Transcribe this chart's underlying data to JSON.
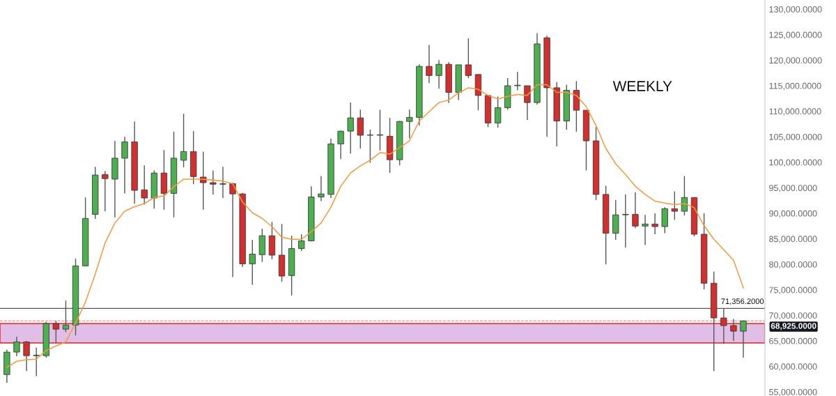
{
  "chart_data": {
    "type": "candlestick",
    "annotations": [
      "WEEKLY"
    ],
    "categories": [
      null,
      null,
      null,
      null,
      null,
      null,
      null,
      null,
      null,
      null,
      null,
      null,
      null,
      null,
      null,
      null,
      null,
      null,
      null,
      null,
      null,
      null,
      null,
      null,
      null,
      null,
      null,
      null,
      null,
      null,
      null,
      null,
      null,
      null,
      null,
      null,
      null,
      null,
      null,
      null,
      null,
      null,
      null,
      null,
      null,
      null,
      null,
      null,
      null,
      null,
      null,
      null,
      null,
      null,
      null,
      null,
      null,
      null,
      null,
      null,
      null,
      null,
      null,
      null,
      null,
      null,
      null,
      null,
      null,
      null,
      null,
      null,
      null,
      null,
      null,
      null
    ],
    "ohlc": [
      [
        58400,
        63300,
        56800,
        62800
      ],
      [
        62800,
        65800,
        62000,
        64800
      ],
      [
        64800,
        65000,
        59100,
        62100
      ],
      [
        62100,
        63700,
        58100,
        62200
      ],
      [
        62100,
        68700,
        61700,
        68400
      ],
      [
        68400,
        68900,
        64600,
        67300
      ],
      [
        67300,
        72900,
        66700,
        68100
      ],
      [
        68100,
        81100,
        66100,
        79700
      ],
      [
        79700,
        93100,
        79600,
        89000
      ],
      [
        89800,
        99100,
        88900,
        97500
      ],
      [
        97600,
        98300,
        90400,
        96800
      ],
      [
        96700,
        104200,
        89200,
        100800
      ],
      [
        100800,
        105000,
        93900,
        104000
      ],
      [
        104000,
        108000,
        91900,
        94500
      ],
      [
        94600,
        99400,
        91700,
        93000
      ],
      [
        93000,
        98400,
        90900,
        97900
      ],
      [
        97900,
        102400,
        90700,
        93900
      ],
      [
        93900,
        106000,
        89200,
        100800
      ],
      [
        100400,
        109500,
        99000,
        102100
      ],
      [
        102100,
        106100,
        95700,
        97200
      ],
      [
        97100,
        102100,
        90700,
        96000
      ],
      [
        96000,
        98400,
        93700,
        95700
      ],
      [
        95800,
        99100,
        93000,
        95700
      ],
      [
        95800,
        96000,
        77500,
        93800
      ],
      [
        93800,
        94000,
        79500,
        80100
      ],
      [
        80100,
        84800,
        76000,
        82000
      ],
      [
        81900,
        87000,
        80500,
        85600
      ],
      [
        85600,
        88300,
        81000,
        81800
      ],
      [
        81800,
        87900,
        76600,
        77700
      ],
      [
        77800,
        85600,
        73900,
        83100
      ],
      [
        83100,
        85900,
        82600,
        84600
      ],
      [
        84600,
        95300,
        84500,
        93200
      ],
      [
        93200,
        97300,
        92400,
        93800
      ],
      [
        93700,
        104600,
        93000,
        103600
      ],
      [
        103600,
        106200,
        100600,
        106100
      ],
      [
        106100,
        111700,
        101700,
        108700
      ],
      [
        108700,
        110300,
        102700,
        105300
      ],
      [
        105300,
        106400,
        99900,
        105300
      ],
      [
        105300,
        110300,
        102300,
        105400
      ],
      [
        105100,
        108700,
        97900,
        100500
      ],
      [
        100500,
        108100,
        99400,
        108000
      ],
      [
        108000,
        110300,
        104700,
        108800
      ],
      [
        108800,
        119200,
        107200,
        118800
      ],
      [
        118800,
        123000,
        115500,
        117000
      ],
      [
        117000,
        120000,
        114400,
        119200
      ],
      [
        119200,
        119600,
        111600,
        113700
      ],
      [
        113700,
        119100,
        112200,
        119100
      ],
      [
        119100,
        124300,
        116500,
        117000
      ],
      [
        117200,
        117300,
        110200,
        113100
      ],
      [
        113100,
        113100,
        106900,
        107700
      ],
      [
        107700,
        112900,
        106800,
        110700
      ],
      [
        110700,
        116500,
        110300,
        115000
      ],
      [
        115000,
        117700,
        114100,
        115100
      ],
      [
        115000,
        115000,
        108300,
        111700
      ],
      [
        111700,
        125300,
        111300,
        123200
      ],
      [
        124400,
        124800,
        105000,
        114600
      ],
      [
        114600,
        115700,
        103100,
        108100
      ],
      [
        108100,
        115200,
        106400,
        114100
      ],
      [
        114100,
        115900,
        106000,
        110200
      ],
      [
        110200,
        110200,
        98400,
        104200
      ],
      [
        104200,
        106900,
        92600,
        93700
      ],
      [
        93700,
        95400,
        80000,
        86100
      ],
      [
        86100,
        92600,
        84800,
        89700
      ],
      [
        89700,
        93700,
        83300,
        89800
      ],
      [
        89800,
        94100,
        87100,
        87500
      ],
      [
        87500,
        89700,
        83800,
        87900
      ],
      [
        87900,
        90000,
        85900,
        87400
      ],
      [
        87400,
        91200,
        86100,
        90900
      ],
      [
        90900,
        94300,
        88700,
        90400
      ],
      [
        90400,
        97300,
        89600,
        93100
      ],
      [
        93100,
        93100,
        85500,
        85900
      ],
      [
        85900,
        90000,
        75100,
        76300
      ],
      [
        76300,
        78600,
        59100,
        69500
      ],
      [
        69500,
        71356.2,
        64400,
        68000
      ],
      [
        68000,
        69300,
        65000,
        66900
      ],
      [
        66900,
        69000,
        61700,
        68925
      ]
    ],
    "colors": [
      "#4caf50",
      "#4caf50",
      "#d32f2f",
      "#4caf50",
      "#4caf50",
      "#d32f2f",
      "#4caf50",
      "#4caf50",
      "#4caf50",
      "#4caf50",
      "#d32f2f",
      "#4caf50",
      "#4caf50",
      "#d32f2f",
      "#d32f2f",
      "#4caf50",
      "#d32f2f",
      "#4caf50",
      "#4caf50",
      "#d32f2f",
      "#d32f2f",
      "#d32f2f",
      "#d32f2f",
      "#d32f2f",
      "#d32f2f",
      "#4caf50",
      "#4caf50",
      "#d32f2f",
      "#d32f2f",
      "#4caf50",
      "#4caf50",
      "#4caf50",
      "#4caf50",
      "#4caf50",
      "#4caf50",
      "#4caf50",
      "#d32f2f",
      "#4caf50",
      "#4caf50",
      "#d32f2f",
      "#4caf50",
      "#4caf50",
      "#4caf50",
      "#d32f2f",
      "#4caf50",
      "#d32f2f",
      "#4caf50",
      "#d32f2f",
      "#d32f2f",
      "#d32f2f",
      "#4caf50",
      "#4caf50",
      "#4caf50",
      "#d32f2f",
      "#4caf50",
      "#d32f2f",
      "#d32f2f",
      "#4caf50",
      "#d32f2f",
      "#d32f2f",
      "#d32f2f",
      "#d32f2f",
      "#4caf50",
      "#4caf50",
      "#d32f2f",
      "#4caf50",
      "#d32f2f",
      "#4caf50",
      "#d32f2f",
      "#4caf50",
      "#d32f2f",
      "#d32f2f",
      "#d32f2f",
      "#d32f2f",
      "#d32f2f",
      "#4caf50"
    ],
    "series": [
      {
        "type": "line",
        "color": "#f59a3c",
        "values": [
          59800,
          61000,
          61300,
          61400,
          63100,
          64000,
          64800,
          68500,
          72600,
          78100,
          84200,
          88100,
          90400,
          91300,
          91900,
          93100,
          93400,
          95200,
          96700,
          96700,
          96700,
          96500,
          96300,
          95800,
          92200,
          90100,
          89000,
          87400,
          85300,
          84900,
          84900,
          86400,
          88100,
          91200,
          95300,
          97900,
          99300,
          100400,
          101900,
          101600,
          102900,
          104200,
          108100,
          109900,
          111700,
          112200,
          113600,
          114600,
          114300,
          113100,
          112400,
          112900,
          113300,
          113100,
          115200,
          115200,
          113700,
          113700,
          113100,
          110900,
          107200,
          102700,
          99700,
          97600,
          95300,
          93700,
          92400,
          92000,
          91700,
          91900,
          91100,
          87600,
          84900,
          82900,
          80800,
          75400
        ]
      }
    ],
    "bands": [
      {
        "axis": "y",
        "from": 64600,
        "to": 68400,
        "color": "#e1bee7"
      }
    ],
    "ref_lines": [
      {
        "axis": "y",
        "value": 71356.2,
        "label": "71,356.2000",
        "color": "#555555",
        "line_style": "solid"
      },
      {
        "axis": "y",
        "value": 68925,
        "label": "68,925.0000",
        "color": "#e57373",
        "line_style": "dashed"
      }
    ],
    "ylim": [
      54200,
      131800
    ],
    "yticks": [
      {
        "value": 55000,
        "label": "55,000.0000"
      },
      {
        "value": 60000,
        "label": "60,000.0000"
      },
      {
        "value": 65000,
        "label": "65,000.0000"
      },
      {
        "value": 70000,
        "label": "70,000.0000"
      },
      {
        "value": 75000,
        "label": "75,000.0000"
      },
      {
        "value": 80000,
        "label": "80,000.0000"
      },
      {
        "value": 85000,
        "label": "85,000.0000"
      },
      {
        "value": 90000,
        "label": "90,000.0000"
      },
      {
        "value": 95000,
        "label": "95,000.0000"
      },
      {
        "value": 100000,
        "label": "100,000.0000"
      },
      {
        "value": 105000,
        "label": "105,000.0000"
      },
      {
        "value": 110000,
        "label": "110,000.0000"
      },
      {
        "value": 115000,
        "label": "115,000.0000"
      },
      {
        "value": 120000,
        "label": "120,000.0000"
      },
      {
        "value": 125000,
        "label": "125,000.0000"
      },
      {
        "value": 130000,
        "label": "130,000.0000"
      }
    ],
    "tick_labels": "y",
    "grid": false,
    "legend": false
  }
}
